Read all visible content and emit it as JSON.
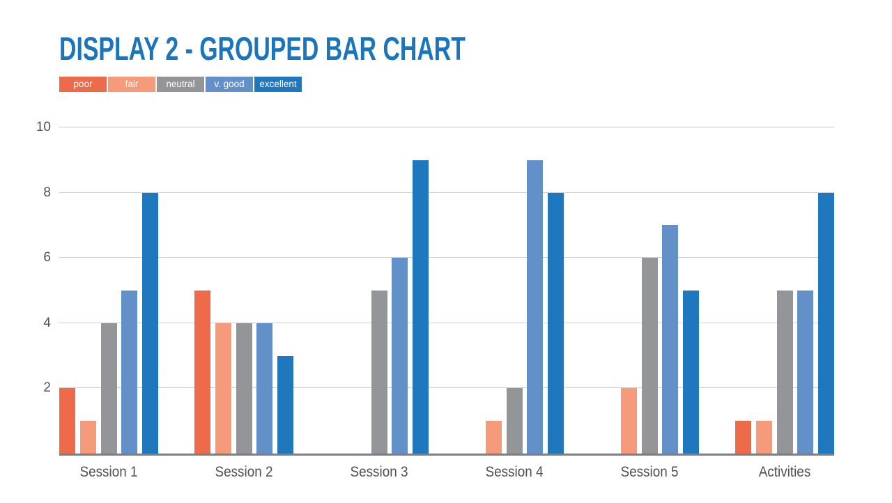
{
  "page": {
    "background": "#ffffff",
    "title_color": "#1B75BC",
    "gridline_color": "#CDCED0",
    "axis_line_color": "#7C7E81",
    "label_color": "#4F5052"
  },
  "chart_data": {
    "type": "bar",
    "title": "DISPLAY 2 - GROUPED BAR CHART",
    "categories": [
      "Session 1",
      "Session 2",
      "Session 3",
      "Session 4",
      "Session 5",
      "Activities"
    ],
    "series": [
      {
        "name": "poor",
        "color": "#ED6A4B",
        "values": [
          2,
          5,
          0,
          0,
          0,
          1
        ]
      },
      {
        "name": "fair",
        "color": "#F59B7C",
        "values": [
          1,
          4,
          0,
          1,
          2,
          1
        ]
      },
      {
        "name": "neutral",
        "color": "#939598",
        "values": [
          4,
          4,
          5,
          2,
          6,
          5
        ]
      },
      {
        "name": "v. good",
        "color": "#6390C9",
        "values": [
          5,
          4,
          6,
          9,
          7,
          5
        ]
      },
      {
        "name": "excellent",
        "color": "#1F78BE",
        "values": [
          8,
          3,
          9,
          8,
          5,
          8
        ]
      }
    ],
    "xlabel": "",
    "ylabel": "",
    "ylim": [
      0,
      10
    ],
    "yticks": [
      2,
      4,
      6,
      8,
      10
    ],
    "grid": true,
    "legend_position": "top-left"
  }
}
